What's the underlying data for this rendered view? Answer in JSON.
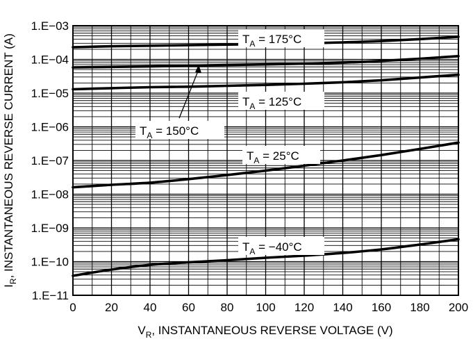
{
  "chart_data": {
    "type": "line",
    "x_scale": "linear",
    "y_scale": "log",
    "xlim": [
      0,
      200
    ],
    "ylim": [
      1e-11,
      0.001
    ],
    "grid": true,
    "x_ticks": [
      "0",
      "20",
      "40",
      "60",
      "80",
      "100",
      "120",
      "140",
      "160",
      "180",
      "200"
    ],
    "y_ticks": [
      "1.E−03",
      "1.E−04",
      "1.E−05",
      "1.E−06",
      "1.E−07",
      "1.E−08",
      "1.E−09",
      "1.E−10",
      "1.E−11"
    ],
    "xlabel": {
      "main": "V",
      "sub": "R",
      "rest": ", INSTANTANEOUS REVERSE VOLTAGE (V)"
    },
    "ylabel": {
      "main": "I",
      "sub": "R",
      "rest": ", INSTANTANEOUS REVERSE CURRENT (A)"
    },
    "series": [
      {
        "label": {
          "main": "T",
          "sub": "A",
          "rest": " = 175°C"
        },
        "x": [
          0,
          20,
          40,
          60,
          80,
          100,
          120,
          140,
          160,
          180,
          200
        ],
        "y": [
          0.00023,
          0.000245,
          0.000255,
          0.000265,
          0.000275,
          0.000285,
          0.0003,
          0.00032,
          0.00035,
          0.0004,
          0.00047
        ]
      },
      {
        "label": {
          "main": "T",
          "sub": "A",
          "rest": " = 150°C"
        },
        "x": [
          0,
          20,
          40,
          60,
          80,
          100,
          120,
          140,
          160,
          180,
          200
        ],
        "y": [
          5.8e-05,
          6e-05,
          6.2e-05,
          6.5e-05,
          6.8e-05,
          7.1e-05,
          7.5e-05,
          8e-05,
          9e-05,
          0.000105,
          0.000125
        ]
      },
      {
        "label": {
          "main": "T",
          "sub": "A",
          "rest": " = 125°C"
        },
        "x": [
          0,
          20,
          40,
          60,
          80,
          100,
          120,
          140,
          160,
          180,
          200
        ],
        "y": [
          1.3e-05,
          1.4e-05,
          1.5e-05,
          1.55e-05,
          1.65e-05,
          1.75e-05,
          1.9e-05,
          2.1e-05,
          2.4e-05,
          2.9e-05,
          3.5e-05
        ]
      },
      {
        "label": {
          "main": "T",
          "sub": "A",
          "rest": " = 25°C"
        },
        "x": [
          0,
          20,
          40,
          60,
          80,
          100,
          120,
          140,
          160,
          180,
          200
        ],
        "y": [
          1.6e-08,
          1.9e-08,
          2.2e-08,
          2.8e-08,
          3.7e-08,
          5e-08,
          7e-08,
          1e-07,
          1.45e-07,
          2.2e-07,
          3.4e-07
        ]
      },
      {
        "label": {
          "main": "T",
          "sub": "A",
          "rest": " = −40°C"
        },
        "x": [
          0,
          20,
          40,
          60,
          80,
          100,
          120,
          140,
          160,
          180,
          200
        ],
        "y": [
          3.8e-11,
          5.8e-11,
          8e-11,
          9.5e-11,
          1.1e-10,
          1.3e-10,
          1.5e-10,
          1.8e-10,
          2.3e-10,
          3.2e-10,
          4.6e-10
        ]
      }
    ]
  }
}
